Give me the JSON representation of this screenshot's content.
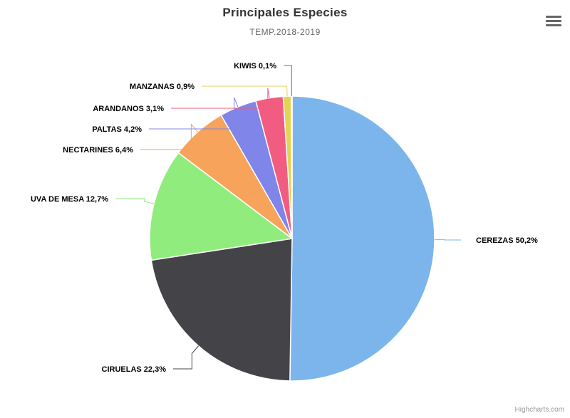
{
  "chart_data": {
    "type": "pie",
    "title": "Principales Especies",
    "subtitle": "TEMP.2018-2019",
    "slices": [
      {
        "name": "CEREZAS",
        "value": 50.2,
        "label": "CEREZAS 50,2%",
        "color": "#7cb5ec"
      },
      {
        "name": "CIRUELAS",
        "value": 22.3,
        "label": "CIRUELAS 22,3%",
        "color": "#434348"
      },
      {
        "name": "UVA DE MESA",
        "value": 12.7,
        "label": "UVA DE MESA 12,7%",
        "color": "#90ed7d"
      },
      {
        "name": "NECTARINES",
        "value": 6.4,
        "label": "NECTARINES 6,4%",
        "color": "#f7a35c"
      },
      {
        "name": "PALTAS",
        "value": 4.2,
        "label": "PALTAS 4,2%",
        "color": "#8085e9"
      },
      {
        "name": "ARANDANOS",
        "value": 3.1,
        "label": "ARANDANOS 3,1%",
        "color": "#f15c80"
      },
      {
        "name": "MANZANAS",
        "value": 0.9,
        "label": "MANZANAS 0,9%",
        "color": "#e4d354"
      },
      {
        "name": "KIWIS",
        "value": 0.1,
        "label": "KIWIS 0,1%",
        "color": "#2b908f"
      }
    ],
    "start_angle": "12 o'clock",
    "direction": "clockwise",
    "legend": "none"
  },
  "ui": {
    "menu_icon": "hamburger-icon",
    "credits": "Highcharts.com"
  }
}
